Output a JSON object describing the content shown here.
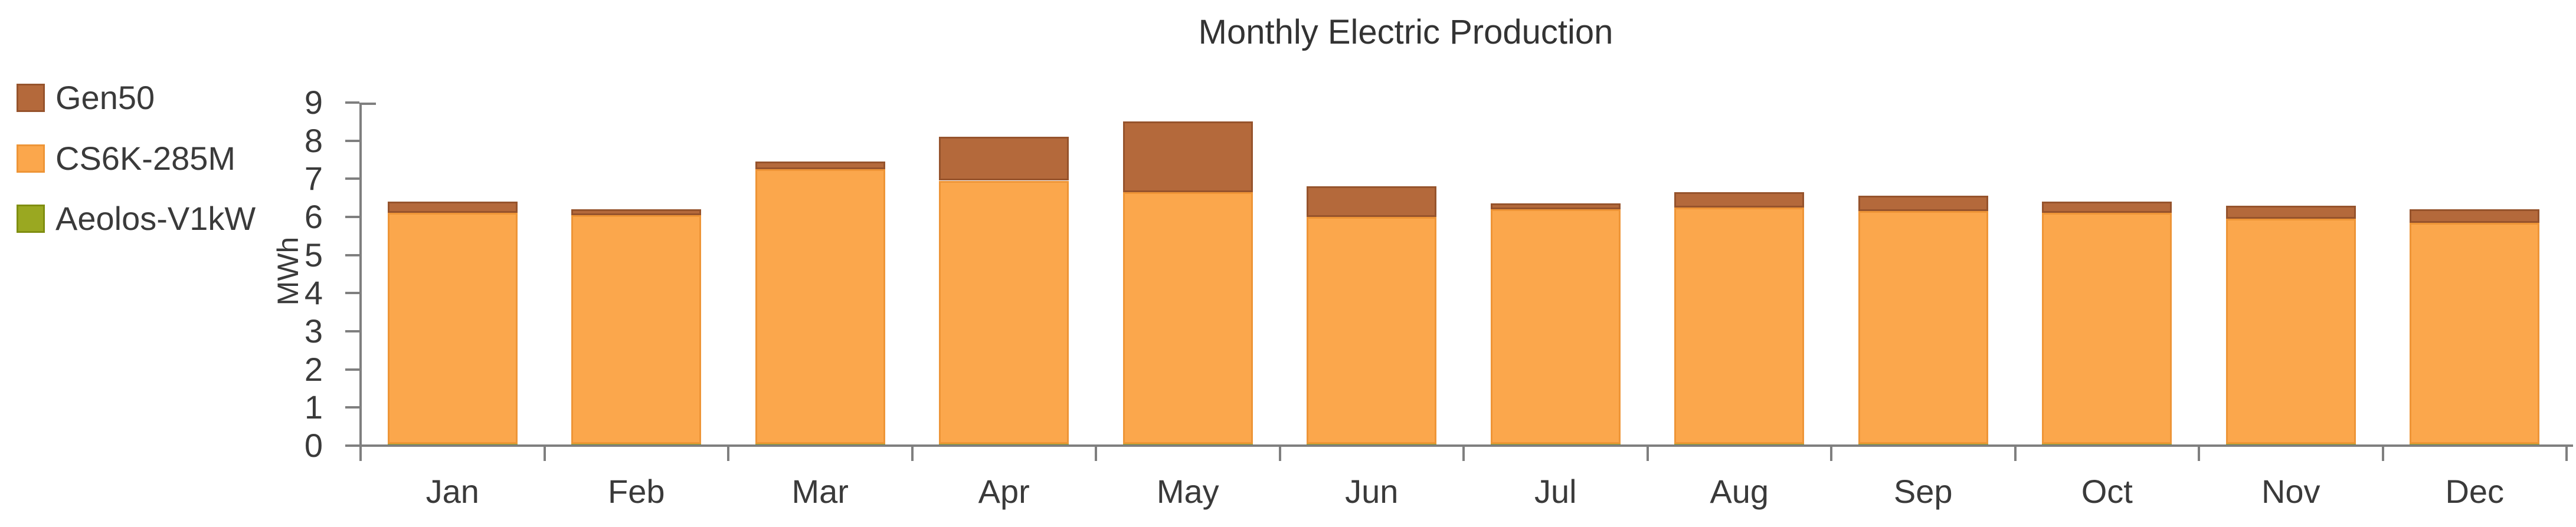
{
  "window": {
    "background_color": "#ffffff",
    "axis_color": "#7f7f7f",
    "text_color": "#3a3a3a",
    "title_color": "#333333"
  },
  "chart_data": {
    "type": "bar",
    "stacked": true,
    "title": "Monthly Electric Production",
    "ylabel": "MWh",
    "xlabel": "",
    "ylim": [
      0,
      9
    ],
    "ytick_labels": [
      "0",
      "1",
      "2",
      "3",
      "4",
      "5",
      "6",
      "7",
      "8",
      "9"
    ],
    "grid": false,
    "legend_position": "top-left",
    "categories": [
      "Jan",
      "Feb",
      "Mar",
      "Apr",
      "May",
      "Jun",
      "Jul",
      "Aug",
      "Sep",
      "Oct",
      "Nov",
      "Dec"
    ],
    "series": [
      {
        "name": "Gen50",
        "color": "#b4693b",
        "border_color": "#96532c",
        "values": [
          0.3,
          0.15,
          0.2,
          1.15,
          1.85,
          0.8,
          0.15,
          0.4,
          0.4,
          0.3,
          0.35,
          0.35
        ]
      },
      {
        "name": "CS6K-285M",
        "color": "#fba74c",
        "border_color": "#ee9537",
        "values": [
          6.05,
          6.0,
          7.2,
          6.9,
          6.6,
          5.95,
          6.15,
          6.2,
          6.1,
          6.05,
          5.9,
          5.8
        ]
      },
      {
        "name": "Aeolos-V1kW",
        "color": "#9aa821",
        "border_color": "#7f8e10",
        "values": [
          0.02,
          0.02,
          0.02,
          0.02,
          0.02,
          0.02,
          0.02,
          0.02,
          0.02,
          0.02,
          0.02,
          0.02
        ]
      }
    ],
    "totals": [
      6.35,
      6.15,
      7.4,
      8.05,
      8.45,
      6.75,
      6.3,
      6.6,
      6.5,
      6.35,
      6.25,
      6.15
    ]
  }
}
